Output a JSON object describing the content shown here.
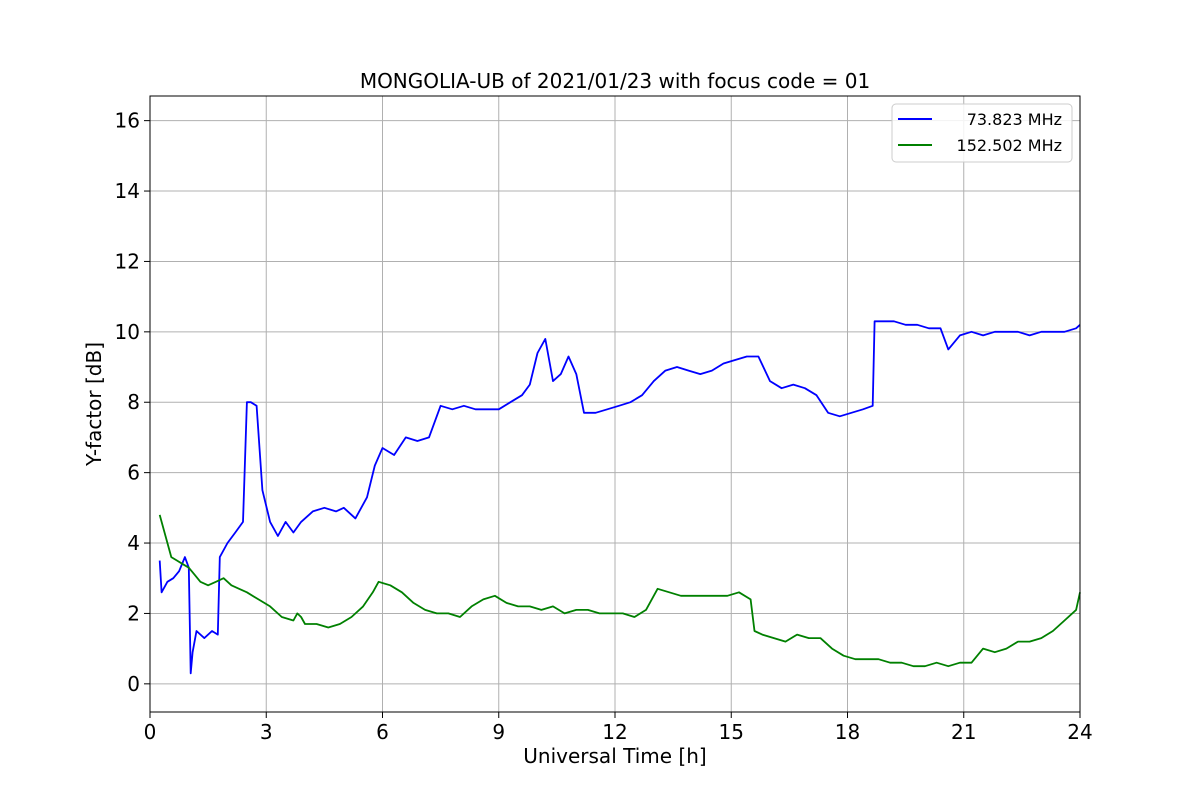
{
  "chart_data": {
    "type": "line",
    "title": "MONGOLIA-UB of 2021/01/23 with focus code = 01",
    "xlabel": "Universal Time [h]",
    "ylabel": "Y-factor [dB]",
    "xlim": [
      0,
      24
    ],
    "ylim": [
      -0.8,
      16.7
    ],
    "xticks": [
      0,
      3,
      6,
      9,
      12,
      15,
      18,
      21,
      24
    ],
    "yticks": [
      0,
      2,
      4,
      6,
      8,
      10,
      12,
      14,
      16
    ],
    "grid": true,
    "legend_position": "top-right",
    "series": [
      {
        "name": "73.823 MHz",
        "color": "#0000ff",
        "x": [
          0.25,
          0.3,
          0.45,
          0.6,
          0.75,
          0.9,
          1.0,
          1.05,
          1.1,
          1.2,
          1.4,
          1.6,
          1.75,
          1.8,
          2.0,
          2.2,
          2.4,
          2.5,
          2.6,
          2.75,
          2.9,
          3.1,
          3.3,
          3.5,
          3.7,
          3.9,
          4.2,
          4.5,
          4.8,
          5.0,
          5.3,
          5.6,
          5.8,
          6.0,
          6.3,
          6.6,
          6.9,
          7.2,
          7.5,
          7.8,
          8.1,
          8.4,
          8.7,
          9.0,
          9.3,
          9.6,
          9.8,
          10.0,
          10.2,
          10.4,
          10.6,
          10.8,
          11.0,
          11.2,
          11.5,
          11.8,
          12.1,
          12.4,
          12.7,
          13.0,
          13.3,
          13.6,
          13.9,
          14.2,
          14.5,
          14.8,
          15.1,
          15.4,
          15.7,
          16.0,
          16.3,
          16.6,
          16.9,
          17.2,
          17.5,
          17.8,
          18.1,
          18.4,
          18.65,
          18.7,
          18.9,
          19.2,
          19.5,
          19.8,
          20.1,
          20.4,
          20.6,
          20.9,
          21.2,
          21.5,
          21.8,
          22.1,
          22.4,
          22.7,
          23.0,
          23.3,
          23.6,
          23.9,
          24.0
        ],
        "y": [
          3.5,
          2.6,
          2.9,
          3.0,
          3.2,
          3.6,
          3.3,
          0.3,
          0.9,
          1.5,
          1.3,
          1.5,
          1.4,
          3.6,
          4.0,
          4.3,
          4.6,
          8.0,
          8.0,
          7.9,
          5.5,
          4.6,
          4.2,
          4.6,
          4.3,
          4.6,
          4.9,
          5.0,
          4.9,
          5.0,
          4.7,
          5.3,
          6.2,
          6.7,
          6.5,
          7.0,
          6.9,
          7.0,
          7.9,
          7.8,
          7.9,
          7.8,
          7.8,
          7.8,
          8.0,
          8.2,
          8.5,
          9.4,
          9.8,
          8.6,
          8.8,
          9.3,
          8.8,
          7.7,
          7.7,
          7.8,
          7.9,
          8.0,
          8.2,
          8.6,
          8.9,
          9.0,
          8.9,
          8.8,
          8.9,
          9.1,
          9.2,
          9.3,
          9.3,
          8.6,
          8.4,
          8.5,
          8.4,
          8.2,
          7.7,
          7.6,
          7.7,
          7.8,
          7.9,
          10.3,
          10.3,
          10.3,
          10.2,
          10.2,
          10.1,
          10.1,
          9.5,
          9.9,
          10.0,
          9.9,
          10.0,
          10.0,
          10.0,
          9.9,
          10.0,
          10.0,
          10.0,
          10.1,
          10.2
        ]
      },
      {
        "name": "152.502 MHz",
        "color": "#008000",
        "x": [
          0.25,
          0.4,
          0.55,
          0.7,
          0.85,
          1.0,
          1.15,
          1.3,
          1.5,
          1.7,
          1.9,
          2.1,
          2.3,
          2.5,
          2.8,
          3.1,
          3.4,
          3.7,
          3.8,
          3.9,
          4.0,
          4.3,
          4.6,
          4.9,
          5.2,
          5.5,
          5.75,
          5.9,
          6.2,
          6.5,
          6.8,
          7.1,
          7.4,
          7.7,
          8.0,
          8.3,
          8.6,
          8.9,
          9.2,
          9.5,
          9.8,
          10.1,
          10.4,
          10.7,
          11.0,
          11.3,
          11.6,
          11.9,
          12.2,
          12.5,
          12.8,
          13.1,
          13.4,
          13.7,
          14.0,
          14.3,
          14.6,
          14.9,
          15.2,
          15.5,
          15.6,
          15.8,
          16.1,
          16.4,
          16.7,
          17.0,
          17.3,
          17.6,
          17.9,
          18.2,
          18.5,
          18.8,
          19.1,
          19.4,
          19.7,
          20.0,
          20.3,
          20.6,
          20.9,
          21.2,
          21.5,
          21.8,
          22.1,
          22.4,
          22.7,
          23.0,
          23.3,
          23.6,
          23.9,
          24.0
        ],
        "y": [
          4.8,
          4.2,
          3.6,
          3.5,
          3.4,
          3.3,
          3.1,
          2.9,
          2.8,
          2.9,
          3.0,
          2.8,
          2.7,
          2.6,
          2.4,
          2.2,
          1.9,
          1.8,
          2.0,
          1.9,
          1.7,
          1.7,
          1.6,
          1.7,
          1.9,
          2.2,
          2.6,
          2.9,
          2.8,
          2.6,
          2.3,
          2.1,
          2.0,
          2.0,
          1.9,
          2.2,
          2.4,
          2.5,
          2.3,
          2.2,
          2.2,
          2.1,
          2.2,
          2.0,
          2.1,
          2.1,
          2.0,
          2.0,
          2.0,
          1.9,
          2.1,
          2.7,
          2.6,
          2.5,
          2.5,
          2.5,
          2.5,
          2.5,
          2.6,
          2.4,
          1.5,
          1.4,
          1.3,
          1.2,
          1.4,
          1.3,
          1.3,
          1.0,
          0.8,
          0.7,
          0.7,
          0.7,
          0.6,
          0.6,
          0.5,
          0.5,
          0.6,
          0.5,
          0.6,
          0.6,
          1.0,
          0.9,
          1.0,
          1.2,
          1.2,
          1.3,
          1.5,
          1.8,
          2.1,
          2.6
        ]
      }
    ]
  }
}
